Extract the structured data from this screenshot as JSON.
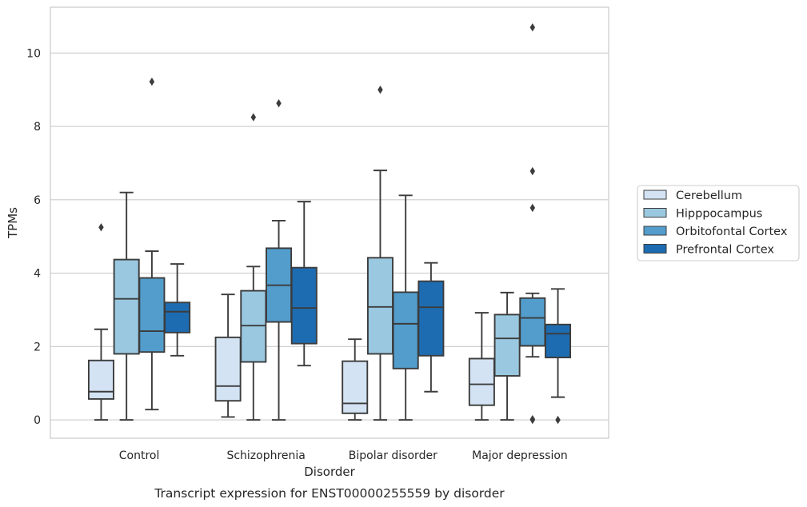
{
  "caption": "Transcript expression for ENST00000255559 by disorder",
  "chart_data": {
    "type": "box",
    "xlabel": "Disorder",
    "ylabel": "TPMs",
    "ylim": [
      -0.5,
      11.25
    ],
    "yticks": [
      0,
      2,
      4,
      6,
      8,
      10
    ],
    "grid": "horizontal",
    "legend_position": "right",
    "categories": [
      "Control",
      "Schizophrenia",
      "Bipolar disorder",
      "Major depression"
    ],
    "series": [
      {
        "name": "Cerebellum",
        "color": "#d3e3f3",
        "boxes": [
          {
            "whislo": 0.0,
            "q1": 0.57,
            "med": 0.77,
            "q3": 1.62,
            "whishi": 2.47,
            "fliers": [
              5.25
            ]
          },
          {
            "whislo": 0.08,
            "q1": 0.52,
            "med": 0.92,
            "q3": 2.25,
            "whishi": 3.42,
            "fliers": []
          },
          {
            "whislo": 0.0,
            "q1": 0.18,
            "med": 0.45,
            "q3": 1.6,
            "whishi": 2.2,
            "fliers": []
          },
          {
            "whislo": 0.0,
            "q1": 0.4,
            "med": 0.97,
            "q3": 1.67,
            "whishi": 2.92,
            "fliers": []
          }
        ]
      },
      {
        "name": "Hipppocampus",
        "color": "#9ac8e0",
        "boxes": [
          {
            "whislo": 0.0,
            "q1": 1.8,
            "med": 3.3,
            "q3": 4.37,
            "whishi": 6.2,
            "fliers": []
          },
          {
            "whislo": 0.0,
            "q1": 1.58,
            "med": 2.57,
            "q3": 3.52,
            "whishi": 4.18,
            "fliers": [
              8.25
            ]
          },
          {
            "whislo": 0.0,
            "q1": 1.8,
            "med": 3.08,
            "q3": 4.42,
            "whishi": 6.8,
            "fliers": [
              9.0
            ]
          },
          {
            "whislo": 0.0,
            "q1": 1.2,
            "med": 2.22,
            "q3": 2.87,
            "whishi": 3.47,
            "fliers": []
          }
        ]
      },
      {
        "name": "Orbitofontal Cortex",
        "color": "#529dcc",
        "boxes": [
          {
            "whislo": 0.28,
            "q1": 1.85,
            "med": 2.42,
            "q3": 3.87,
            "whishi": 4.6,
            "fliers": [
              9.22
            ]
          },
          {
            "whislo": 0.0,
            "q1": 2.67,
            "med": 3.67,
            "q3": 4.68,
            "whishi": 5.43,
            "fliers": [
              8.63
            ]
          },
          {
            "whislo": 0.0,
            "q1": 1.4,
            "med": 2.62,
            "q3": 3.48,
            "whishi": 6.12,
            "fliers": []
          },
          {
            "whislo": 1.72,
            "q1": 2.02,
            "med": 2.78,
            "q3": 3.32,
            "whishi": 3.45,
            "fliers": [
              0.0,
              0.02,
              5.78,
              6.78,
              10.7
            ]
          }
        ]
      },
      {
        "name": "Prefrontal Cortex",
        "color": "#1d6cb1",
        "boxes": [
          {
            "whislo": 1.75,
            "q1": 2.38,
            "med": 2.95,
            "q3": 3.2,
            "whishi": 4.25,
            "fliers": []
          },
          {
            "whislo": 1.48,
            "q1": 2.08,
            "med": 3.05,
            "q3": 4.15,
            "whishi": 5.95,
            "fliers": []
          },
          {
            "whislo": 0.77,
            "q1": 1.75,
            "med": 3.07,
            "q3": 3.78,
            "whishi": 4.28,
            "fliers": []
          },
          {
            "whislo": 0.62,
            "q1": 1.7,
            "med": 2.35,
            "q3": 2.6,
            "whishi": 3.57,
            "fliers": [
              0.0
            ]
          }
        ]
      }
    ]
  }
}
